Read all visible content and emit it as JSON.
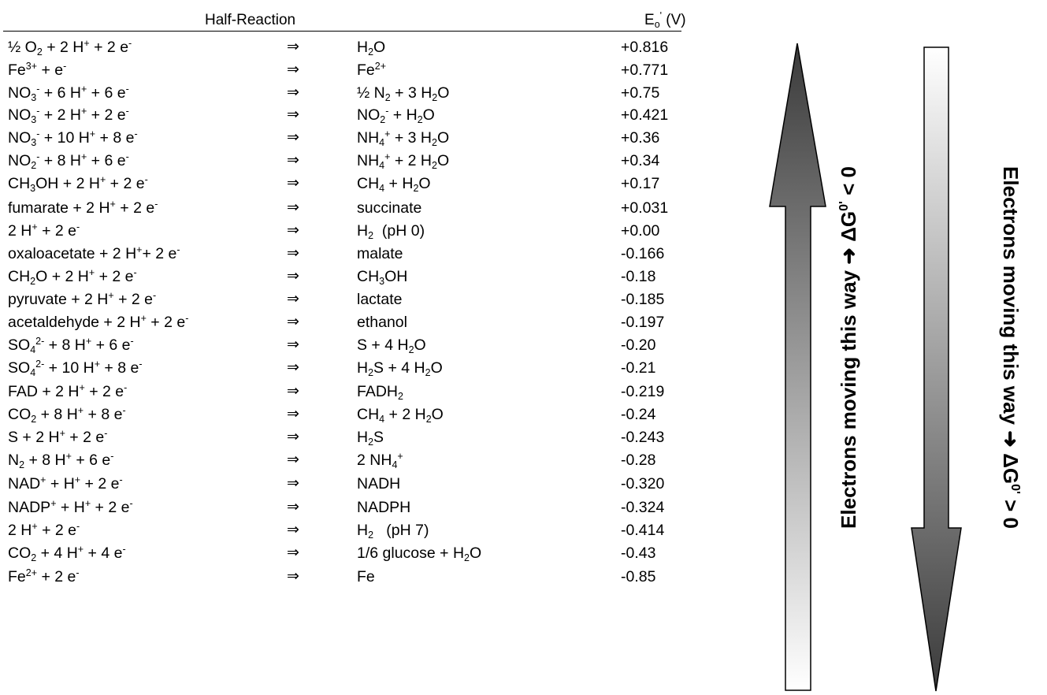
{
  "header": {
    "reaction": "Half-Reaction",
    "potential": "E<sub>o</sub><sup>'</sup> (V)"
  },
  "rows": [
    {
      "left": "½ O<sub>2</sub> + 2 H<sup>+</sup> + 2 e<sup>-</sup>",
      "arrow": "⇒",
      "right": "H<sub>2</sub>O",
      "value": "+0.816"
    },
    {
      "left": "Fe<sup>3+</sup> + e<sup>-</sup>",
      "arrow": "⇒",
      "right": "Fe<sup>2+</sup>",
      "value": "+0.771"
    },
    {
      "left": "NO<sub>3</sub><sup>-</sup> + 6 H<sup>+</sup> + 6 e<sup>-</sup>",
      "arrow": "⇒",
      "right": "½ N<sub>2</sub> + 3 H<sub>2</sub>O",
      "value": "+0.75"
    },
    {
      "left": "NO<sub>3</sub><sup>-</sup> + 2 H<sup>+</sup> + 2 e<sup>-</sup>",
      "arrow": "⇒",
      "right": "NO<sub>2</sub><sup>-</sup> + H<sub>2</sub>O",
      "value": "+0.421"
    },
    {
      "left": "NO<sub>3</sub><sup>-</sup> + 10 H<sup>+</sup> + 8 e<sup>-</sup>",
      "arrow": "⇒",
      "right": "NH<sub>4</sub><sup>+</sup> + 3 H<sub>2</sub>O",
      "value": "+0.36"
    },
    {
      "left": "NO<sub>2</sub><sup>-</sup> + 8 H<sup>+</sup> + 6 e<sup>-</sup>",
      "arrow": "⇒",
      "right": "NH<sub>4</sub><sup>+</sup> + 2 H<sub>2</sub>O",
      "value": "+0.34"
    },
    {
      "left": "CH<sub>3</sub>OH + 2 H<sup>+</sup> + 2 e<sup>-</sup>",
      "arrow": "⇒",
      "right": "CH<sub>4</sub> + H<sub>2</sub>O",
      "value": "+0.17"
    },
    {
      "left": "fumarate + 2 H<sup>+</sup> + 2 e<sup>-</sup>",
      "arrow": "⇒",
      "right": "succinate",
      "value": "+0.031"
    },
    {
      "left": "2 H<sup>+</sup> + 2 e<sup>-</sup>",
      "arrow": "⇒",
      "right": "H<sub>2</sub>&nbsp; (pH 0)",
      "value": "+0.00"
    },
    {
      "left": "oxaloacetate + 2 H<sup>+</sup>+ 2 e<sup>-</sup>",
      "arrow": "⇒",
      "right": "malate",
      "value": "-0.166"
    },
    {
      "left": "CH<sub>2</sub>O + 2 H<sup>+</sup> + 2 e<sup>-</sup>",
      "arrow": "⇒",
      "right": "CH<sub>3</sub>OH",
      "value": "-0.18"
    },
    {
      "left": "pyruvate + 2 H<sup>+</sup> + 2 e<sup>-</sup>",
      "arrow": "⇒",
      "right": "lactate",
      "value": "-0.185"
    },
    {
      "left": "acetaldehyde + 2 H<sup>+</sup> + 2 e<sup>-</sup>",
      "arrow": "⇒",
      "right": "ethanol",
      "value": "-0.197"
    },
    {
      "left": "SO<sub>4</sub><sup>2-</sup> + 8 H<sup>+</sup> + 6 e<sup>-</sup>",
      "arrow": "⇒",
      "right": "S + 4 H<sub>2</sub>O",
      "value": "-0.20"
    },
    {
      "left": "SO<sub>4</sub><sup>2-</sup> + 10 H<sup>+</sup> + 8 e<sup>-</sup>",
      "arrow": "⇒",
      "right": "H<sub>2</sub>S + 4 H<sub>2</sub>O",
      "value": "-0.21"
    },
    {
      "left": "FAD + 2 H<sup>+</sup> + 2 e<sup>-</sup>",
      "arrow": "⇒",
      "right": "FADH<sub>2</sub>",
      "value": "-0.219"
    },
    {
      "left": "CO<sub>2</sub> + 8 H<sup>+</sup> + 8 e<sup>-</sup>",
      "arrow": "⇒",
      "right": "CH<sub>4</sub> + 2 H<sub>2</sub>O",
      "value": "-0.24"
    },
    {
      "left": "S + 2 H<sup>+</sup> + 2 e<sup>-</sup>",
      "arrow": "⇒",
      "right": "H<sub>2</sub>S",
      "value": "-0.243"
    },
    {
      "left": "N<sub>2</sub> + 8 H<sup>+</sup> + 6 e<sup>-</sup>",
      "arrow": "⇒",
      "right": "2 NH<sub>4</sub><sup>+</sup>",
      "value": "-0.28"
    },
    {
      "left": "NAD<sup>+</sup> + H<sup>+</sup> + 2 e<sup>-</sup>",
      "arrow": "⇒",
      "right": "NADH",
      "value": "-0.320"
    },
    {
      "left": "NADP<sup>+</sup> + H<sup>+</sup> + 2 e<sup>-</sup>",
      "arrow": "⇒",
      "right": "NADPH",
      "value": "-0.324"
    },
    {
      "left": "2 H<sup>+</sup> + 2 e<sup>-</sup>",
      "arrow": "⇒",
      "right": "H<sub>2</sub>&nbsp;&nbsp; (pH 7)",
      "value": "-0.414"
    },
    {
      "left": "CO<sub>2</sub> + 4 H<sup>+</sup> + 4 e<sup>-</sup>",
      "arrow": "⇒",
      "right": "1/6 glucose + H<sub>2</sub>O",
      "value": "-0.43"
    },
    {
      "left": "Fe<sup>2+</sup> + 2 e<sup>-</sup>",
      "arrow": "⇒",
      "right": "Fe",
      "value": "-0.85"
    }
  ],
  "arrows": {
    "up_label": "Electrons moving this way ➜ ΔG<sup>0'</sup> &lt; 0",
    "down_label": "Electrons moving this way ➜ ΔG<sup>0'</sup> &gt; 0",
    "up_colors": [
      "#3a3a3a",
      "#ffffff"
    ],
    "down_colors": [
      "#ffffff",
      "#3a3a3a"
    ]
  }
}
